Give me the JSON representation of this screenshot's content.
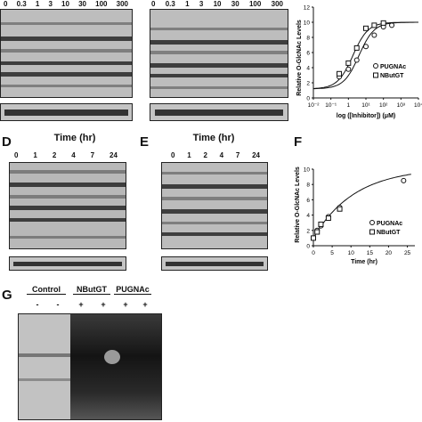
{
  "panelA": {
    "lanes": [
      "0",
      "0.3",
      "1",
      "3",
      "10",
      "30",
      "100",
      "300"
    ]
  },
  "panelB": {
    "lanes": [
      "0",
      "0.3",
      "1",
      "3",
      "10",
      "30",
      "100",
      "300"
    ]
  },
  "panelC": {
    "ylabel": "Relative O-GlcNAc Levels",
    "xlabel": "log ([Inhibitor]) (μM)",
    "yticks": [
      "0",
      "2",
      "4",
      "6",
      "8",
      "10",
      "12"
    ],
    "xticks": [
      "10⁻²",
      "10⁻¹",
      "1",
      "10¹",
      "10²",
      "10³",
      "10⁴"
    ],
    "legend": [
      "PUGNAc",
      "NButGT"
    ]
  },
  "panelD": {
    "letter": "D",
    "title": "Time (hr)",
    "lanes": [
      "0",
      "1",
      "2",
      "4",
      "7",
      "24"
    ]
  },
  "panelE": {
    "letter": "E",
    "title": "Time (hr)",
    "lanes": [
      "0",
      "1",
      "2",
      "4",
      "7",
      "24"
    ]
  },
  "panelF": {
    "letter": "F",
    "ylabel": "Relative O-GlcNAc Levels",
    "xlabel": "Time (hr)",
    "yticks": [
      "0",
      "2",
      "4",
      "6",
      "8",
      "10"
    ],
    "xticks": [
      "0",
      "5",
      "10",
      "15",
      "20",
      "25"
    ],
    "legend": [
      "PUGNAc",
      "NButGT"
    ]
  },
  "panelG": {
    "letter": "G",
    "groups": [
      "Control",
      "NButGT",
      "PUGNAc"
    ],
    "signs": [
      "-",
      "-",
      "+",
      "+",
      "+",
      "+"
    ]
  },
  "chart_data": [
    {
      "type": "scatter",
      "xlabel": "log ([Inhibitor]) (μM)",
      "ylabel": "Relative O-GlcNAc Levels",
      "xscale": "log",
      "xlim": [
        0.01,
        10000
      ],
      "ylim": [
        0,
        12
      ],
      "legend_position": "right",
      "series": [
        {
          "name": "PUGNAc",
          "marker": "circle",
          "x": [
            0.3,
            1,
            3,
            10,
            30,
            100,
            300
          ],
          "y": [
            2.8,
            3.8,
            5.0,
            6.8,
            8.3,
            9.4,
            9.6
          ]
        },
        {
          "name": "NButGT",
          "marker": "square",
          "x": [
            0.3,
            1,
            3,
            10,
            30,
            100
          ],
          "y": [
            3.2,
            4.6,
            6.6,
            9.2,
            9.6,
            9.9
          ]
        }
      ]
    },
    {
      "type": "line",
      "xlabel": "Time (hr)",
      "ylabel": "Relative O-GlcNAc Levels",
      "xlim": [
        0,
        27
      ],
      "ylim": [
        0,
        10
      ],
      "legend_position": "right",
      "series": [
        {
          "name": "PUGNAc",
          "marker": "circle",
          "x": [
            0,
            1,
            2,
            4,
            7,
            24
          ],
          "y": [
            1.0,
            2.0,
            2.6,
            3.8,
            5.0,
            8.5
          ]
        },
        {
          "name": "NButGT",
          "marker": "square",
          "x": [
            0,
            1,
            2,
            4,
            7
          ],
          "y": [
            1.0,
            1.8,
            2.8,
            3.6,
            4.8
          ]
        }
      ]
    }
  ]
}
